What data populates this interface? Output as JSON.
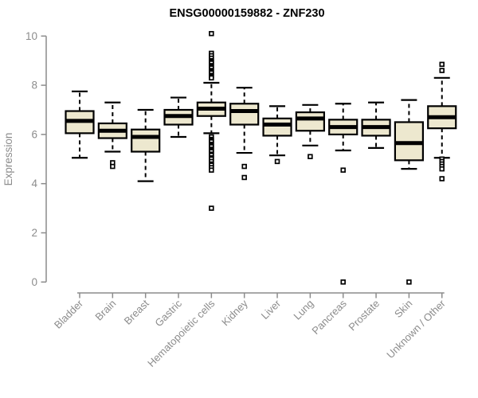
{
  "chart_data": {
    "type": "box",
    "title": "ENSG00000159882 - ZNF230",
    "ylabel": "Expression",
    "xlabel": "",
    "ylim": [
      0,
      10
    ],
    "yticks": [
      0,
      2,
      4,
      6,
      8,
      10
    ],
    "grid": false,
    "legend": "none",
    "categories": [
      "Bladder",
      "Brain",
      "Breast",
      "Gastric",
      "Hematopoietic cells",
      "Kidney",
      "Liver",
      "Lung",
      "Pancreas",
      "Prostate",
      "Skin",
      "Unknown / Other"
    ],
    "series": [
      {
        "category": "Bladder",
        "whisker_low": 5.05,
        "q1": 6.05,
        "median": 6.55,
        "q3": 6.95,
        "whisker_high": 7.75,
        "outliers": []
      },
      {
        "category": "Brain",
        "whisker_low": 5.3,
        "q1": 5.85,
        "median": 6.15,
        "q3": 6.45,
        "whisker_high": 7.3,
        "outliers": [
          4.85,
          4.7
        ]
      },
      {
        "category": "Breast",
        "whisker_low": 4.1,
        "q1": 5.3,
        "median": 5.9,
        "q3": 6.2,
        "whisker_high": 7.0,
        "outliers": []
      },
      {
        "category": "Gastric",
        "whisker_low": 5.9,
        "q1": 6.4,
        "median": 6.75,
        "q3": 7.0,
        "whisker_high": 7.5,
        "outliers": []
      },
      {
        "category": "Hematopoietic cells",
        "whisker_low": 6.05,
        "q1": 6.75,
        "median": 7.05,
        "q3": 7.3,
        "whisker_high": 8.1,
        "outliers": [
          10.1,
          9.3,
          9.2,
          9.1,
          9.0,
          8.95,
          8.9,
          8.8,
          8.75,
          8.7,
          8.6,
          8.55,
          8.5,
          8.4,
          8.35,
          8.3,
          5.9,
          5.8,
          5.75,
          5.7,
          5.6,
          5.55,
          5.5,
          5.4,
          5.35,
          5.3,
          5.2,
          5.15,
          5.05,
          5.0,
          4.9,
          4.8,
          4.75,
          4.65,
          4.55,
          3.0
        ]
      },
      {
        "category": "Kidney",
        "whisker_low": 5.25,
        "q1": 6.4,
        "median": 6.95,
        "q3": 7.25,
        "whisker_high": 7.9,
        "outliers": [
          4.7,
          4.25
        ]
      },
      {
        "category": "Liver",
        "whisker_low": 5.15,
        "q1": 5.95,
        "median": 6.4,
        "q3": 6.65,
        "whisker_high": 7.15,
        "outliers": [
          4.9
        ]
      },
      {
        "category": "Lung",
        "whisker_low": 5.55,
        "q1": 6.15,
        "median": 6.65,
        "q3": 6.9,
        "whisker_high": 7.2,
        "outliers": [
          5.1
        ]
      },
      {
        "category": "Pancreas",
        "whisker_low": 5.35,
        "q1": 6.0,
        "median": 6.3,
        "q3": 6.6,
        "whisker_high": 7.25,
        "outliers": [
          4.55,
          0.0
        ]
      },
      {
        "category": "Prostate",
        "whisker_low": 5.45,
        "q1": 5.95,
        "median": 6.3,
        "q3": 6.6,
        "whisker_high": 7.3,
        "outliers": []
      },
      {
        "category": "Skin",
        "whisker_low": 4.6,
        "q1": 4.95,
        "median": 5.65,
        "q3": 6.5,
        "whisker_high": 7.4,
        "outliers": [
          0.0
        ]
      },
      {
        "category": "Unknown / Other",
        "whisker_low": 5.05,
        "q1": 6.25,
        "median": 6.7,
        "q3": 7.15,
        "whisker_high": 8.3,
        "outliers": [
          8.85,
          8.6,
          5.0,
          4.9,
          4.8,
          4.7,
          4.6,
          4.2
        ]
      }
    ],
    "colors": {
      "box_fill": "#EDE8CF",
      "box_border": "#000000",
      "median": "#000000",
      "whisker": "#000000",
      "outlier_stroke": "#000000",
      "outlier_fill": "#ffffff",
      "axis": "#8c8c8c",
      "tick_labels": "#8c8c8c",
      "title": "#000000",
      "background": "#ffffff"
    }
  }
}
